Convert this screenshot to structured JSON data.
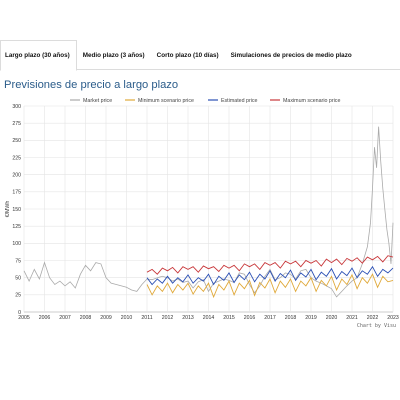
{
  "tabs": [
    {
      "label": "Largo plazo (30 años)",
      "active": true
    },
    {
      "label": "Medio plazo (3 años)",
      "active": false
    },
    {
      "label": "Corto plazo (10 días)",
      "active": false
    },
    {
      "label": "Simulaciones de precios de medio plazo",
      "active": false
    }
  ],
  "page_title": "Previsiones de precio a largo plazo",
  "credit": "Chart by Visu",
  "chart_data": {
    "type": "line",
    "ylabel": "€/MWh",
    "ylim": [
      0,
      300
    ],
    "yticks": [
      0,
      25,
      50,
      75,
      100,
      125,
      150,
      175,
      200,
      225,
      250,
      275,
      300
    ],
    "xlim": [
      2005,
      2023
    ],
    "xticks": [
      "2005",
      "2006",
      "2007",
      "2008",
      "2009",
      "2010",
      "2011",
      "2012",
      "2013",
      "2014",
      "2015",
      "2016",
      "2017",
      "2018",
      "2019",
      "2020",
      "2021",
      "2022",
      "2023"
    ],
    "grid": true,
    "legend_position": "top",
    "series": [
      {
        "name": "Market price",
        "color": "#aaaaaa",
        "x": [
          2005.0,
          2005.25,
          2005.5,
          2005.75,
          2006.0,
          2006.25,
          2006.5,
          2006.75,
          2007.0,
          2007.25,
          2007.5,
          2007.75,
          2008.0,
          2008.25,
          2008.5,
          2008.75,
          2009.0,
          2009.25,
          2009.5,
          2009.75,
          2010.0,
          2010.25,
          2010.5,
          2010.75,
          2011.0,
          2011.25,
          2011.5,
          2011.75,
          2012.0,
          2012.25,
          2012.5,
          2012.75,
          2013.0,
          2013.25,
          2013.5,
          2013.75,
          2014.0,
          2014.25,
          2014.5,
          2014.75,
          2015.0,
          2015.25,
          2015.5,
          2015.75,
          2016.0,
          2016.25,
          2016.5,
          2016.75,
          2017.0,
          2017.25,
          2017.5,
          2017.75,
          2018.0,
          2018.25,
          2018.5,
          2018.75,
          2019.0,
          2019.25,
          2019.5,
          2019.75,
          2020.0,
          2020.25,
          2020.5,
          2020.75,
          2021.0,
          2021.25,
          2021.5,
          2021.75,
          2021.9,
          2022.0,
          2022.1,
          2022.2,
          2022.3,
          2022.4,
          2022.5,
          2022.6,
          2022.7,
          2022.8,
          2022.9,
          2023.0
        ],
        "values": [
          60,
          45,
          62,
          48,
          72,
          50,
          40,
          45,
          38,
          44,
          35,
          55,
          68,
          60,
          72,
          70,
          50,
          42,
          40,
          38,
          36,
          32,
          30,
          40,
          48,
          47,
          50,
          52,
          50,
          45,
          48,
          43,
          45,
          35,
          44,
          47,
          30,
          42,
          45,
          48,
          46,
          43,
          57,
          55,
          40,
          28,
          38,
          52,
          62,
          47,
          50,
          57,
          55,
          48,
          60,
          62,
          50,
          45,
          42,
          38,
          34,
          22,
          30,
          38,
          45,
          50,
          70,
          95,
          130,
          180,
          240,
          210,
          270,
          220,
          180,
          150,
          120,
          100,
          70,
          130
        ]
      },
      {
        "name": "Minimum scenario price",
        "color": "#e0a93a",
        "x": [
          2011.0,
          2011.25,
          2011.5,
          2011.75,
          2012.0,
          2012.25,
          2012.5,
          2012.75,
          2013.0,
          2013.25,
          2013.5,
          2013.75,
          2014.0,
          2014.25,
          2014.5,
          2014.75,
          2015.0,
          2015.25,
          2015.5,
          2015.75,
          2016.0,
          2016.25,
          2016.5,
          2016.75,
          2017.0,
          2017.25,
          2017.5,
          2017.75,
          2018.0,
          2018.25,
          2018.5,
          2018.75,
          2019.0,
          2019.25,
          2019.5,
          2019.75,
          2020.0,
          2020.25,
          2020.5,
          2020.75,
          2021.0,
          2021.25,
          2021.5,
          2021.75,
          2022.0,
          2022.25,
          2022.5,
          2022.75,
          2023.0
        ],
        "values": [
          40,
          25,
          38,
          30,
          42,
          28,
          40,
          32,
          42,
          26,
          38,
          30,
          42,
          22,
          40,
          32,
          45,
          25,
          42,
          34,
          46,
          24,
          43,
          35,
          48,
          28,
          45,
          36,
          48,
          30,
          45,
          38,
          50,
          30,
          46,
          38,
          52,
          32,
          48,
          40,
          54,
          34,
          50,
          42,
          55,
          36,
          52,
          44,
          46
        ]
      },
      {
        "name": "Estimated price",
        "color": "#2a4fb4",
        "x": [
          2011.0,
          2011.25,
          2011.5,
          2011.75,
          2012.0,
          2012.25,
          2012.5,
          2012.75,
          2013.0,
          2013.25,
          2013.5,
          2013.75,
          2014.0,
          2014.25,
          2014.5,
          2014.75,
          2015.0,
          2015.25,
          2015.5,
          2015.75,
          2016.0,
          2016.25,
          2016.5,
          2016.75,
          2017.0,
          2017.25,
          2017.5,
          2017.75,
          2018.0,
          2018.25,
          2018.5,
          2018.75,
          2019.0,
          2019.25,
          2019.5,
          2019.75,
          2020.0,
          2020.25,
          2020.5,
          2020.75,
          2021.0,
          2021.25,
          2021.5,
          2021.75,
          2022.0,
          2022.25,
          2022.5,
          2022.75,
          2023.0
        ],
        "values": [
          50,
          40,
          48,
          42,
          52,
          42,
          50,
          44,
          54,
          42,
          50,
          45,
          55,
          40,
          52,
          46,
          57,
          43,
          54,
          47,
          58,
          44,
          55,
          48,
          60,
          45,
          56,
          50,
          61,
          46,
          57,
          51,
          62,
          47,
          58,
          52,
          63,
          48,
          59,
          53,
          64,
          50,
          60,
          55,
          66,
          52,
          62,
          57,
          64
        ]
      },
      {
        "name": "Maximum scenario price",
        "color": "#c8373a",
        "x": [
          2011.0,
          2011.25,
          2011.5,
          2011.75,
          2012.0,
          2012.25,
          2012.5,
          2012.75,
          2013.0,
          2013.25,
          2013.5,
          2013.75,
          2014.0,
          2014.25,
          2014.5,
          2014.75,
          2015.0,
          2015.25,
          2015.5,
          2015.75,
          2016.0,
          2016.25,
          2016.5,
          2016.75,
          2017.0,
          2017.25,
          2017.5,
          2017.75,
          2018.0,
          2018.25,
          2018.5,
          2018.75,
          2019.0,
          2019.25,
          2019.5,
          2019.75,
          2020.0,
          2020.25,
          2020.5,
          2020.75,
          2021.0,
          2021.25,
          2021.5,
          2021.75,
          2022.0,
          2022.25,
          2022.5,
          2022.75,
          2023.0
        ],
        "values": [
          58,
          62,
          55,
          64,
          60,
          65,
          57,
          66,
          62,
          66,
          58,
          67,
          63,
          66,
          59,
          68,
          64,
          68,
          60,
          70,
          66,
          70,
          62,
          72,
          68,
          72,
          64,
          74,
          70,
          74,
          66,
          75,
          71,
          75,
          67,
          77,
          72,
          77,
          69,
          78,
          74,
          79,
          71,
          80,
          76,
          81,
          73,
          82,
          80
        ]
      }
    ]
  }
}
